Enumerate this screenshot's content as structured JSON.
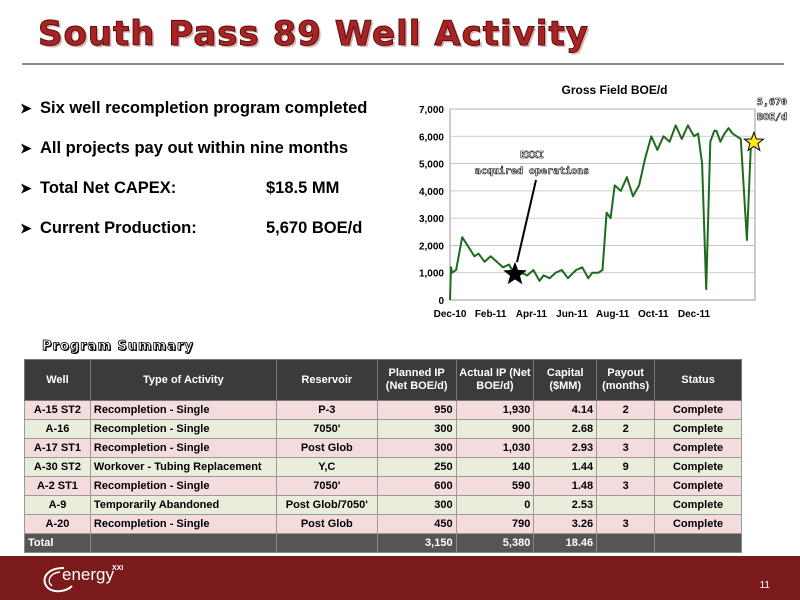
{
  "header": {
    "title": "South Pass 89 Well Activity"
  },
  "bullets": [
    {
      "text": "Six well recompletion program completed",
      "value": ""
    },
    {
      "text": "All projects pay out within nine months",
      "value": ""
    },
    {
      "text": "Total Net CAPEX:",
      "value": "$18.5  MM"
    },
    {
      "text": "Current Production:",
      "value": "5,670  BOE/d"
    }
  ],
  "chart_data": {
    "type": "line",
    "title": "Gross Field BOE/d",
    "xlabel": "",
    "ylabel": "",
    "ylim": [
      0,
      7000
    ],
    "yticks": [
      "0",
      "1,000",
      "2,000",
      "3,000",
      "4,000",
      "5,000",
      "6,000",
      "7,000"
    ],
    "xticks": [
      "Dec-10",
      "Feb-11",
      "Apr-11",
      "Jun-11",
      "Aug-11",
      "Oct-11",
      "Dec-11"
    ],
    "grid": true,
    "series": [
      {
        "color": "#1e6b1e",
        "x": [
          0.0,
          0.05,
          0.1,
          0.3,
          0.6,
          0.95,
          1.2,
          1.4,
          1.7,
          2.0,
          2.3,
          2.6,
          2.9,
          3.2,
          3.5,
          3.8,
          4.1,
          4.4,
          4.6,
          4.9,
          5.2,
          5.5,
          5.8,
          6.2,
          6.5,
          6.8,
          7.0,
          7.3,
          7.5,
          7.7,
          7.9,
          8.1,
          8.4,
          8.7,
          9.0,
          9.3,
          9.6,
          9.9,
          10.2,
          10.5,
          10.8,
          11.1,
          11.4,
          11.7,
          12.0,
          12.2,
          12.4,
          12.6,
          12.8,
          13.0,
          13.1,
          13.3,
          13.5,
          13.7,
          13.9,
          14.1,
          14.3,
          14.6,
          14.8
        ],
        "y": [
          0,
          1200,
          1000,
          1100,
          2300,
          1900,
          1600,
          1700,
          1400,
          1600,
          1400,
          1200,
          1300,
          900,
          1000,
          900,
          1100,
          700,
          900,
          800,
          1000,
          1100,
          800,
          1100,
          1200,
          800,
          1000,
          1000,
          1100,
          3200,
          3000,
          4200,
          4000,
          4500,
          3800,
          4200,
          5200,
          6000,
          5500,
          6000,
          5800,
          6400,
          5900,
          6400,
          6000,
          6100,
          5000,
          400,
          5800,
          6200,
          6200,
          5800,
          6100,
          6300,
          6100,
          6000,
          5900,
          2200,
          5700
        ]
      }
    ],
    "annotations": [
      {
        "text": "EXXI acquired operations",
        "x": 3.0,
        "y": 800,
        "line1": "EXXI",
        "line2": "acquired operations"
      },
      {
        "text": "5,670 BOE/d",
        "x": 14.8,
        "y": 5670,
        "line1": "5,670",
        "line2": "BOE/d"
      }
    ]
  },
  "program": {
    "title": "Program Summary",
    "columns": [
      "Well",
      "Type of Activity",
      "Reservoir",
      "Planned IP (Net BOE/d)",
      "Actual IP (Net BOE/d)",
      "Capital ($MM)",
      "Payout (months)",
      "Status"
    ],
    "rows": [
      [
        "A-15 ST2",
        "Recompletion - Single",
        "P-3",
        "950",
        "1,930",
        "4.14",
        "2",
        "Complete"
      ],
      [
        "A-16",
        "Recompletion - Single",
        "7050'",
        "300",
        "900",
        "2.68",
        "2",
        "Complete"
      ],
      [
        "A-17 ST1",
        "Recompletion - Single",
        "Post Glob",
        "300",
        "1,030",
        "2.93",
        "3",
        "Complete"
      ],
      [
        "A-30 ST2",
        "Workover - Tubing Replacement",
        "Y,C",
        "250",
        "140",
        "1.44",
        "9",
        "Complete"
      ],
      [
        "A-2 ST1",
        "Recompletion - Single",
        "7050'",
        "600",
        "590",
        "1.48",
        "3",
        "Complete"
      ],
      [
        "A-9",
        "Temporarily Abandoned",
        "Post Glob/7050'",
        "300",
        "0",
        "2.53",
        "",
        "Complete"
      ],
      [
        "A-20",
        "Recompletion - Single",
        "Post Glob",
        "450",
        "790",
        "3.26",
        "3",
        "Complete"
      ]
    ],
    "total": [
      "Total",
      "",
      "",
      "3,150",
      "5,380",
      "18.46",
      "",
      ""
    ]
  },
  "footer": {
    "logo_text": "energy",
    "logo_sup": "XXI",
    "page_number": "11"
  },
  "colors": {
    "accent": "#7a1a1a",
    "title": "#a82424",
    "series": "#1e6b1e",
    "star_black": "#000000",
    "star_yellow": "#ffe81a"
  }
}
